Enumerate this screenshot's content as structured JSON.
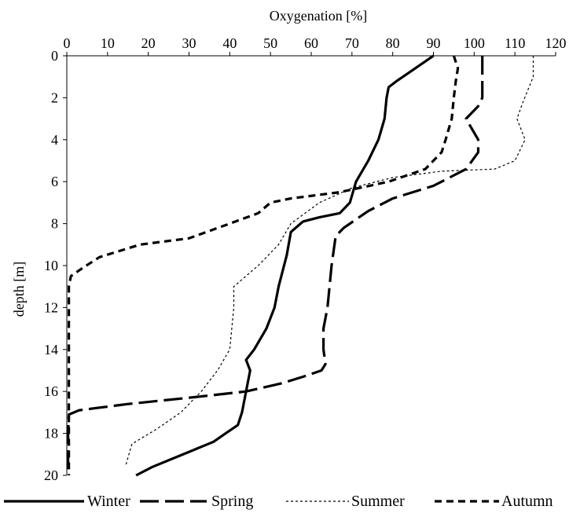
{
  "chart_data": {
    "type": "line",
    "xlabel": "Oxygenation [%]",
    "ylabel": "depth [m]",
    "xlim": [
      0,
      120
    ],
    "ylim": [
      0,
      20
    ],
    "x_axis_position": "top",
    "y_axis_inverted": true,
    "x_ticks": [
      "0",
      "10",
      "20",
      "30",
      "40",
      "50",
      "60",
      "70",
      "80",
      "90",
      "100",
      "110",
      "120"
    ],
    "y_ticks": [
      "0",
      "2",
      "4",
      "6",
      "8",
      "10",
      "12",
      "14",
      "16",
      "18",
      "20"
    ],
    "grid": false,
    "legend_position": "bottom",
    "series": [
      {
        "name": "Winter",
        "style": "solid",
        "points": [
          [
            90,
            0
          ],
          [
            87,
            0.4
          ],
          [
            81,
            1.2
          ],
          [
            79,
            1.5
          ],
          [
            78.5,
            2.0
          ],
          [
            78,
            3.0
          ],
          [
            76.5,
            4.0
          ],
          [
            74,
            5.0
          ],
          [
            71,
            6.0
          ],
          [
            69.5,
            7.0
          ],
          [
            67,
            7.5
          ],
          [
            62,
            7.7
          ],
          [
            58,
            7.9
          ],
          [
            55,
            8.4
          ],
          [
            54,
            9.5
          ],
          [
            52,
            11.0
          ],
          [
            51,
            12.0
          ],
          [
            49,
            13.0
          ],
          [
            46,
            14.0
          ],
          [
            44,
            14.5
          ],
          [
            45,
            15.0
          ],
          [
            44,
            16.0
          ],
          [
            43,
            17.0
          ],
          [
            42,
            17.6
          ],
          [
            39,
            18.0
          ],
          [
            36,
            18.4
          ],
          [
            31,
            18.8
          ],
          [
            26,
            19.2
          ],
          [
            21,
            19.6
          ],
          [
            17,
            20.0
          ]
        ]
      },
      {
        "name": "Spring",
        "style": "long-dash",
        "points": [
          [
            102,
            0
          ],
          [
            102,
            2.0
          ],
          [
            101,
            2.4
          ],
          [
            98,
            3.0
          ],
          [
            101,
            4.0
          ],
          [
            101,
            4.6
          ],
          [
            98,
            5.4
          ],
          [
            90,
            6.2
          ],
          [
            80,
            6.8
          ],
          [
            74,
            7.4
          ],
          [
            68,
            8.2
          ],
          [
            66,
            8.6
          ],
          [
            65,
            10.0
          ],
          [
            64.5,
            11.0
          ],
          [
            64,
            12.0
          ],
          [
            63,
            13.0
          ],
          [
            63,
            14.0
          ],
          [
            63.5,
            14.7
          ],
          [
            62.5,
            15.0
          ],
          [
            58,
            15.3
          ],
          [
            53,
            15.6
          ],
          [
            44,
            16.0
          ],
          [
            30,
            16.3
          ],
          [
            15,
            16.6
          ],
          [
            3,
            16.9
          ],
          [
            0.5,
            17.1
          ],
          [
            0.3,
            18.0
          ],
          [
            0.3,
            20.0
          ]
        ]
      },
      {
        "name": "Summer",
        "style": "dotted",
        "points": [
          [
            114.5,
            0
          ],
          [
            114.5,
            1.0
          ],
          [
            112,
            2.2
          ],
          [
            110.5,
            3.0
          ],
          [
            112.5,
            4.0
          ],
          [
            110,
            5.0
          ],
          [
            105,
            5.4
          ],
          [
            92,
            5.5
          ],
          [
            80,
            5.8
          ],
          [
            70,
            6.3
          ],
          [
            62,
            7.0
          ],
          [
            55,
            8.0
          ],
          [
            52,
            9.0
          ],
          [
            47,
            10.0
          ],
          [
            41,
            11.0
          ],
          [
            41,
            12.0
          ],
          [
            40.5,
            13.0
          ],
          [
            40,
            14.0
          ],
          [
            37,
            15.0
          ],
          [
            33,
            16.0
          ],
          [
            28,
            17.0
          ],
          [
            22,
            17.8
          ],
          [
            16,
            18.5
          ],
          [
            14.5,
            19.5
          ]
        ]
      },
      {
        "name": "Autumn",
        "style": "short-dash",
        "points": [
          [
            95,
            0
          ],
          [
            96,
            0.6
          ],
          [
            95.5,
            1.2
          ],
          [
            95,
            2.0
          ],
          [
            94.5,
            3.0
          ],
          [
            93,
            4.0
          ],
          [
            92,
            4.6
          ],
          [
            88,
            5.4
          ],
          [
            79,
            6.0
          ],
          [
            67,
            6.5
          ],
          [
            55,
            6.8
          ],
          [
            50,
            7.0
          ],
          [
            47,
            7.5
          ],
          [
            40,
            8.0
          ],
          [
            30,
            8.7
          ],
          [
            18,
            9.0
          ],
          [
            8,
            9.6
          ],
          [
            4,
            10.1
          ],
          [
            1,
            10.5
          ],
          [
            0.5,
            11.0
          ],
          [
            0.5,
            14.0
          ],
          [
            0.5,
            20.0
          ]
        ]
      }
    ]
  }
}
